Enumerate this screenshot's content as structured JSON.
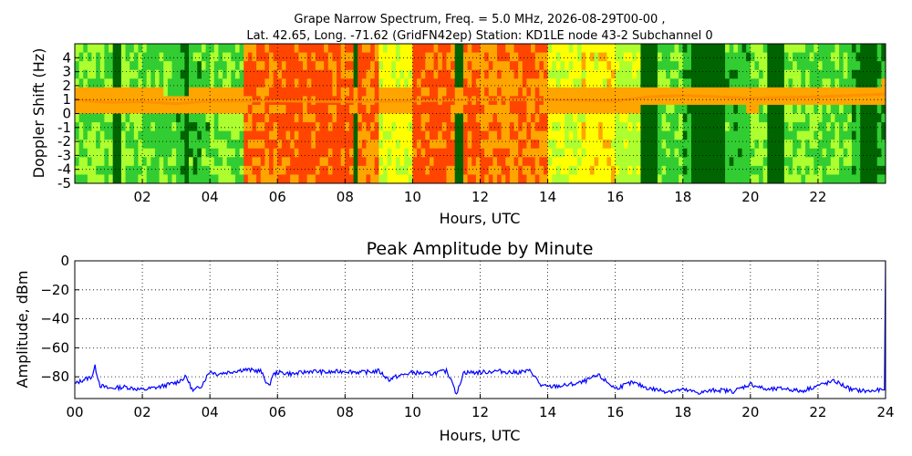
{
  "title_line1": "Grape Narrow Spectrum, Freq. = 5.0 MHz, 2026-08-29T00-00 ,",
  "title_line2": "Lat.  42.65, Long. -71.62 (GridFN42ep) Station: KD1LE node 43-2 Subchannel 0",
  "chart_data": [
    {
      "type": "heatmap",
      "xlabel": "Hours, UTC",
      "ylabel": "Doppler Shift (Hz)",
      "xlim": [
        0,
        24
      ],
      "ylim": [
        -5,
        5
      ],
      "x_ticks": [
        "02",
        "04",
        "06",
        "08",
        "10",
        "12",
        "14",
        "16",
        "18",
        "20",
        "22"
      ],
      "y_ticks": [
        "4",
        "3",
        "2",
        "1",
        "0",
        "-1",
        "-2",
        "-3",
        "-4",
        "-5"
      ],
      "grid": true,
      "colormap": [
        "#006400",
        "#32cd32",
        "#adff2f",
        "#ffff00",
        "#ffa500",
        "#ff4500"
      ],
      "intensity_by_hour": [
        0.35,
        0.35,
        0.3,
        0.25,
        0.35,
        0.85,
        0.9,
        0.9,
        0.85,
        0.55,
        0.9,
        0.85,
        0.8,
        0.85,
        0.5,
        0.6,
        0.45,
        0.3,
        0.2,
        0.25,
        0.35,
        0.35,
        0.3,
        0.2
      ],
      "dark_bands_hours": [
        [
          1.1,
          1.4
        ],
        [
          3.2,
          3.4
        ],
        [
          8.2,
          8.4
        ],
        [
          10.7,
          10.75
        ],
        [
          11.3,
          11.5
        ],
        [
          16.7,
          17.2
        ],
        [
          18.2,
          19.3
        ],
        [
          20.5,
          21
        ],
        [
          23.3,
          23.7
        ]
      ],
      "doppler_trace_hz": [
        {
          "x": 0,
          "y": 1.0
        },
        {
          "x": 1,
          "y": 0.8
        },
        {
          "x": 2,
          "y": 0.85
        },
        {
          "x": 3,
          "y": 0.7
        },
        {
          "x": 4,
          "y": 0.9
        },
        {
          "x": 6,
          "y": 0.9
        },
        {
          "x": 8,
          "y": 0.85
        },
        {
          "x": 10,
          "y": 0.9
        },
        {
          "x": 12,
          "y": 1.0
        },
        {
          "x": 14,
          "y": 1.0
        },
        {
          "x": 16,
          "y": 0.9
        },
        {
          "x": 17,
          "y": 1.2
        },
        {
          "x": 18,
          "y": 1.3
        },
        {
          "x": 20,
          "y": 1.1
        },
        {
          "x": 22,
          "y": 1.2
        },
        {
          "x": 24,
          "y": 1.4
        }
      ],
      "trace_color": "#ff8c00"
    },
    {
      "type": "line",
      "title": "Peak Amplitude by Minute",
      "xlabel": "Hours, UTC",
      "ylabel": "Amplitude, dBm",
      "xlim": [
        0,
        24
      ],
      "ylim": [
        -95,
        0
      ],
      "x_ticks": [
        "00",
        "02",
        "04",
        "06",
        "08",
        "10",
        "12",
        "14",
        "16",
        "18",
        "20",
        "22",
        "24"
      ],
      "y_ticks": [
        "0",
        "−20",
        "−40",
        "−60",
        "−80"
      ],
      "y_tick_values": [
        0,
        -20,
        -40,
        -60,
        -80
      ],
      "grid": true,
      "line_color": "#0000ff",
      "series": [
        {
          "x": [
            0,
            0.25,
            0.5,
            0.6,
            0.75,
            1.0,
            1.5,
            2.0,
            2.5,
            3.0,
            3.3,
            3.5,
            3.75,
            4.0,
            4.2,
            4.5,
            5.0,
            5.5,
            5.75,
            5.85,
            6.0,
            6.5,
            7.0,
            7.5,
            8.0,
            8.5,
            9.0,
            9.3,
            9.5,
            10.0,
            10.5,
            11.0,
            11.2,
            11.3,
            11.5,
            12.0,
            12.5,
            13.0,
            13.5,
            13.8,
            14.0,
            14.5,
            15.0,
            15.5,
            16.0,
            16.5,
            17.0,
            17.5,
            18.0,
            18.5,
            19.0,
            19.5,
            20.0,
            20.5,
            21.0,
            21.5,
            22.0,
            22.5,
            23.0,
            23.5,
            23.9,
            24.0
          ],
          "y": [
            -85,
            -82,
            -80,
            -73,
            -86,
            -88,
            -87,
            -89,
            -87,
            -84,
            -80,
            -90,
            -86,
            -76,
            -78,
            -77,
            -75,
            -76,
            -87,
            -79,
            -77,
            -78,
            -76,
            -77,
            -76,
            -77,
            -76,
            -82,
            -80,
            -77,
            -78,
            -76,
            -84,
            -93,
            -77,
            -77,
            -76,
            -77,
            -76,
            -86,
            -87,
            -86,
            -84,
            -79,
            -88,
            -84,
            -88,
            -90,
            -89,
            -91,
            -89,
            -90,
            -85,
            -89,
            -88,
            -90,
            -86,
            -83,
            -89,
            -90,
            -89,
            0
          ]
        }
      ]
    }
  ]
}
